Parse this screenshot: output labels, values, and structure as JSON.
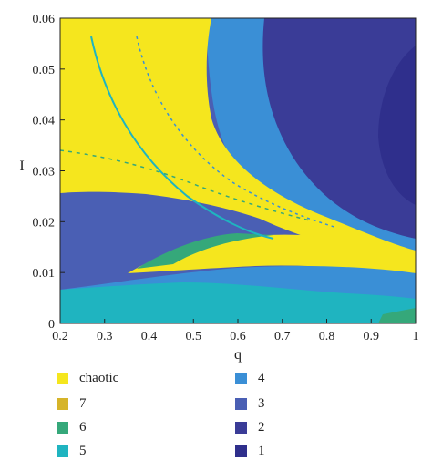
{
  "chart_data": {
    "type": "heatmap",
    "title": "",
    "xlabel": "q",
    "ylabel": "I",
    "xlim": [
      0.2,
      1.0
    ],
    "ylim": [
      0,
      0.06
    ],
    "x_ticks": [
      "0.2",
      "0.3",
      "0.4",
      "0.5",
      "0.6",
      "0.7",
      "0.8",
      "0.9",
      "1"
    ],
    "y_ticks": [
      "0",
      "0.01",
      "0.02",
      "0.03",
      "0.04",
      "0.05",
      "0.06"
    ],
    "grid": false,
    "legend_position": "bottom",
    "categories": [
      {
        "label": "chaotic",
        "color": "#f5e61e"
      },
      {
        "label": "7",
        "color": "#d6b429"
      },
      {
        "label": "6",
        "color": "#35a87a"
      },
      {
        "label": "5",
        "color": "#1fb4c0"
      },
      {
        "label": "4",
        "color": "#3a8fd6"
      },
      {
        "label": "3",
        "color": "#4a5fb4"
      },
      {
        "label": "2",
        "color": "#3a3c97"
      },
      {
        "label": "1",
        "color": "#2f2f8c"
      }
    ],
    "regions": [
      {
        "category": "3",
        "x_range": [
          0.2,
          1.0
        ],
        "y_range": [
          0,
          0.06
        ],
        "note": "background"
      },
      {
        "category": "2",
        "x_range": [
          0.62,
          1.0
        ],
        "y_range": [
          0.015,
          0.06
        ]
      },
      {
        "category": "1",
        "x_range": [
          0.86,
          1.0
        ],
        "y_range": [
          0.028,
          0.057
        ]
      },
      {
        "category": "4",
        "x_range": [
          0.52,
          0.65
        ],
        "y_range": [
          0.02,
          0.06
        ]
      },
      {
        "category": "chaotic",
        "x_range": [
          0.2,
          0.55
        ],
        "y_range": [
          0.026,
          0.06
        ]
      },
      {
        "category": "chaotic",
        "x_range": [
          0.45,
          1.0
        ],
        "y_range": [
          0.01,
          0.02
        ]
      },
      {
        "category": "4",
        "x_range": [
          0.28,
          1.0
        ],
        "y_range": [
          0.002,
          0.012
        ]
      },
      {
        "category": "5",
        "x_range": [
          0.2,
          1.0
        ],
        "y_range": [
          0,
          0.007
        ]
      },
      {
        "category": "6",
        "x_range": [
          0.42,
          0.62
        ],
        "y_range": [
          0.012,
          0.016
        ]
      }
    ]
  }
}
